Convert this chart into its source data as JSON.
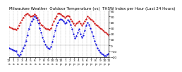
{
  "title": "Milwaukee Weather  Outdoor Temperature (vs)  THSW Index per Hour (Last 24 Hours)",
  "line1_color": "#cc0000",
  "line2_color": "#0000dd",
  "background_color": "#ffffff",
  "plot_bg": "#ffffff",
  "grid_color": "#888888",
  "ylim": [
    -20,
    60
  ],
  "yticks": [
    -20,
    -10,
    0,
    10,
    20,
    30,
    40,
    50,
    60
  ],
  "num_points": 72,
  "temp": [
    32,
    31,
    30,
    29,
    28,
    27,
    30,
    35,
    40,
    44,
    48,
    52,
    54,
    55,
    53,
    51,
    50,
    52,
    54,
    52,
    48,
    44,
    40,
    36,
    34,
    32,
    30,
    29,
    28,
    27,
    30,
    36,
    42,
    47,
    51,
    55,
    56,
    54,
    52,
    50,
    48,
    50,
    52,
    50,
    46,
    42,
    38,
    34,
    38,
    40,
    42,
    38,
    35,
    38,
    42,
    46,
    50,
    48,
    46,
    44,
    42,
    38,
    36,
    34,
    32,
    30,
    28,
    26,
    24,
    22,
    20,
    18
  ],
  "thsw": [
    -5,
    -6,
    -7,
    -8,
    -9,
    -10,
    -15,
    -18,
    -15,
    -10,
    -5,
    0,
    8,
    18,
    28,
    36,
    42,
    46,
    50,
    48,
    44,
    38,
    30,
    22,
    14,
    8,
    2,
    -2,
    -4,
    -6,
    -2,
    6,
    16,
    26,
    34,
    40,
    44,
    46,
    44,
    42,
    38,
    40,
    44,
    42,
    36,
    28,
    20,
    12,
    16,
    22,
    28,
    20,
    14,
    18,
    26,
    34,
    40,
    36,
    30,
    24,
    16,
    8,
    2,
    -4,
    -8,
    -12,
    -14,
    -16,
    -18,
    -18,
    -16,
    -14
  ],
  "title_fontsize": 4.0,
  "tick_fontsize": 3.2,
  "linewidth": 0.7,
  "markersize": 1.2,
  "grid_linewidth": 0.3
}
